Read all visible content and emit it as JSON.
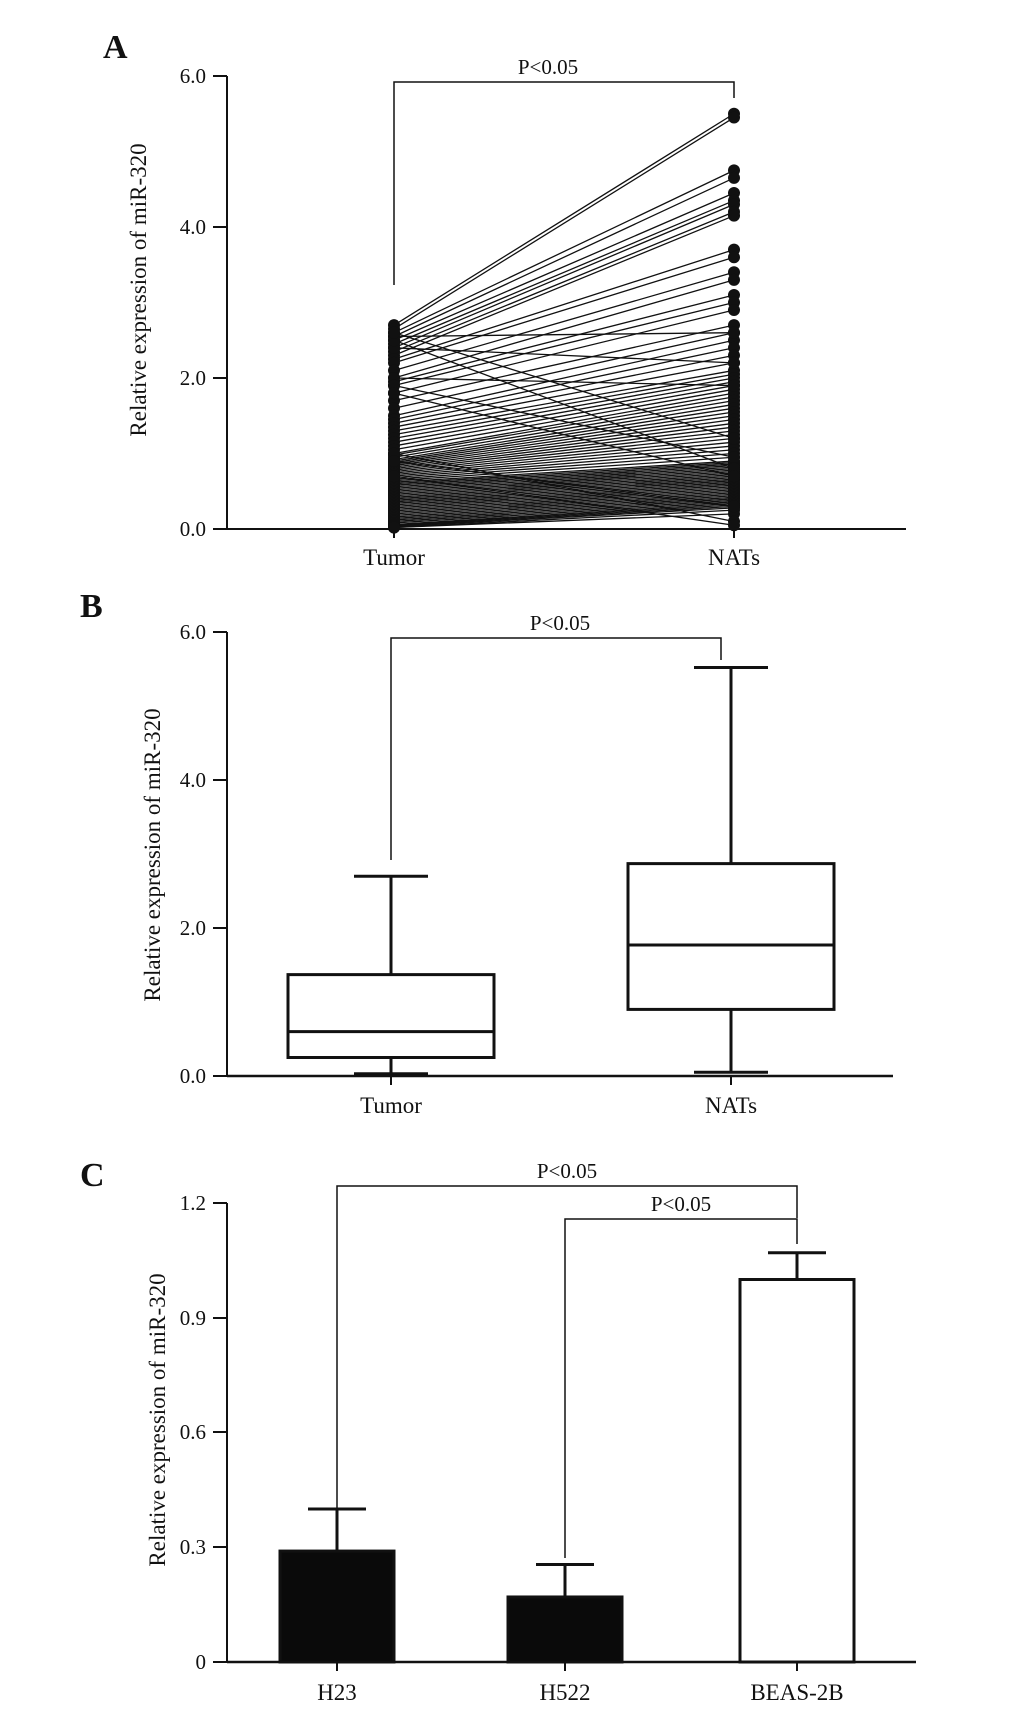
{
  "colors": {
    "ink": "#111111",
    "background": "#ffffff",
    "dark_bar": "#0a0a0a",
    "light_bar": "#ffffff"
  },
  "chart_data": [
    {
      "panel": "A",
      "type": "line",
      "subtype": "paired-dot-plot",
      "categories": [
        "Tumor",
        "NATs"
      ],
      "ylabel": "Relative expression of miR-320",
      "ylim": [
        0,
        6
      ],
      "yticks": [
        "0.0",
        "2.0",
        "4.0",
        "6.0"
      ],
      "significance": [
        {
          "from": "Tumor",
          "to": "NATs",
          "label": "P<0.05"
        }
      ],
      "pairs": [
        [
          2.7,
          5.5
        ],
        [
          2.65,
          5.45
        ],
        [
          2.6,
          4.75
        ],
        [
          2.55,
          4.65
        ],
        [
          2.5,
          4.45
        ],
        [
          2.45,
          4.35
        ],
        [
          2.4,
          4.3
        ],
        [
          2.35,
          4.2
        ],
        [
          2.3,
          4.15
        ],
        [
          2.25,
          3.7
        ],
        [
          2.2,
          3.6
        ],
        [
          2.1,
          3.4
        ],
        [
          2.0,
          3.3
        ],
        [
          1.95,
          3.1
        ],
        [
          1.9,
          3.0
        ],
        [
          1.8,
          2.9
        ],
        [
          1.7,
          2.7
        ],
        [
          1.6,
          2.6
        ],
        [
          1.5,
          2.5
        ],
        [
          1.45,
          2.4
        ],
        [
          1.4,
          2.3
        ],
        [
          1.35,
          2.2
        ],
        [
          1.3,
          2.1
        ],
        [
          1.25,
          2.05
        ],
        [
          1.2,
          2.0
        ],
        [
          1.15,
          1.95
        ],
        [
          1.1,
          1.9
        ],
        [
          1.05,
          1.85
        ],
        [
          1.0,
          1.8
        ],
        [
          0.98,
          1.75
        ],
        [
          0.95,
          1.7
        ],
        [
          0.92,
          1.65
        ],
        [
          0.9,
          1.6
        ],
        [
          0.88,
          1.55
        ],
        [
          0.86,
          1.5
        ],
        [
          0.84,
          1.45
        ],
        [
          0.82,
          1.4
        ],
        [
          0.8,
          1.35
        ],
        [
          0.78,
          1.3
        ],
        [
          0.76,
          1.25
        ],
        [
          0.74,
          1.2
        ],
        [
          0.72,
          1.15
        ],
        [
          0.7,
          1.1
        ],
        [
          0.68,
          1.05
        ],
        [
          0.66,
          1.0
        ],
        [
          0.64,
          0.95
        ],
        [
          0.62,
          0.9
        ],
        [
          0.6,
          0.88
        ],
        [
          0.58,
          0.86
        ],
        [
          0.56,
          0.84
        ],
        [
          0.54,
          0.82
        ],
        [
          0.52,
          0.8
        ],
        [
          0.5,
          0.78
        ],
        [
          0.48,
          0.76
        ],
        [
          0.46,
          0.74
        ],
        [
          0.44,
          0.72
        ],
        [
          0.42,
          0.7
        ],
        [
          0.4,
          0.68
        ],
        [
          0.38,
          0.66
        ],
        [
          0.36,
          0.64
        ],
        [
          0.34,
          0.62
        ],
        [
          0.32,
          0.6
        ],
        [
          0.3,
          0.58
        ],
        [
          0.28,
          0.56
        ],
        [
          0.26,
          0.54
        ],
        [
          0.24,
          0.52
        ],
        [
          0.22,
          0.5
        ],
        [
          0.2,
          0.48
        ],
        [
          0.18,
          0.46
        ],
        [
          0.16,
          0.44
        ],
        [
          0.14,
          0.42
        ],
        [
          0.12,
          0.4
        ],
        [
          0.1,
          0.38
        ],
        [
          0.08,
          0.36
        ],
        [
          0.06,
          0.34
        ],
        [
          0.05,
          0.32
        ],
        [
          0.04,
          0.3
        ],
        [
          0.03,
          0.28
        ],
        [
          0.02,
          0.25
        ],
        [
          0.02,
          0.2
        ],
        [
          2.55,
          2.6
        ],
        [
          2.4,
          2.2
        ],
        [
          2.0,
          1.9
        ],
        [
          1.9,
          0.95
        ],
        [
          2.5,
          0.8
        ],
        [
          2.6,
          1.2
        ],
        [
          1.0,
          0.1
        ],
        [
          0.7,
          0.05
        ],
        [
          0.9,
          0.3
        ],
        [
          1.8,
          0.7
        ]
      ]
    },
    {
      "panel": "B",
      "type": "box",
      "categories": [
        "Tumor",
        "NATs"
      ],
      "ylabel": "Relative expression of miR-320",
      "ylim": [
        0,
        6
      ],
      "yticks": [
        "0.0",
        "2.0",
        "4.0",
        "6.0"
      ],
      "significance": [
        {
          "from": "Tumor",
          "to": "NATs",
          "label": "P<0.05"
        }
      ],
      "boxes": [
        {
          "category": "Tumor",
          "min": 0.03,
          "q1": 0.25,
          "median": 0.6,
          "q3": 1.37,
          "max": 2.7
        },
        {
          "category": "NATs",
          "min": 0.05,
          "q1": 0.9,
          "median": 1.77,
          "q3": 2.87,
          "max": 5.52
        }
      ]
    },
    {
      "panel": "C",
      "type": "bar",
      "categories": [
        "H23",
        "H522",
        "BEAS-2B"
      ],
      "values": [
        0.29,
        0.17,
        1.0
      ],
      "errors": [
        0.11,
        0.085,
        0.07
      ],
      "fills": [
        "dark",
        "dark",
        "light"
      ],
      "ylabel": "Relative expression of miR-320",
      "ylim": [
        0,
        1.2
      ],
      "yticks": [
        "0",
        "0.3",
        "0.6",
        "0.9",
        "1.2"
      ],
      "significance": [
        {
          "from": "H23",
          "to": "BEAS-2B",
          "label": "P<0.05"
        },
        {
          "from": "H522",
          "to": "BEAS-2B",
          "label": "P<0.05"
        }
      ]
    }
  ]
}
